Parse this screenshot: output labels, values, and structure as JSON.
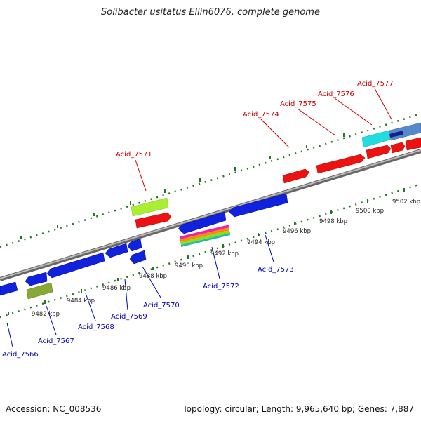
{
  "title": "Solibacter usitatus Ellin6076, complete genome",
  "footer": {
    "accession": "Accession: NC_008536",
    "summary": "Topology: circular; Length: 9,965,640 bp; Genes: 7,887"
  },
  "colors": {
    "forward_gene": "#ee1111",
    "reverse_gene": "#1122dd",
    "forward_label": "#cc0000",
    "reverse_label": "#0000bb",
    "tick": "#227722",
    "backbone": "#888888"
  },
  "scale_ticks": [
    {
      "label": "9482 kbp"
    },
    {
      "label": "9484 kbp"
    },
    {
      "label": "9486 kbp"
    },
    {
      "label": "9488 kbp"
    },
    {
      "label": "9490 kbp"
    },
    {
      "label": "9492 kbp"
    },
    {
      "label": "9494 kbp"
    },
    {
      "label": "9496 kbp"
    },
    {
      "label": "9498 kbp"
    },
    {
      "label": "9500 kbp"
    },
    {
      "label": "9502 kbp"
    }
  ],
  "forward_labels": [
    {
      "name": "Acid_7571"
    },
    {
      "name": "Acid_7574"
    },
    {
      "name": "Acid_7575"
    },
    {
      "name": "Acid_7576"
    },
    {
      "name": "Acid_7577"
    }
  ],
  "reverse_labels": [
    {
      "name": "Acid_7566"
    },
    {
      "name": "Acid_7567"
    },
    {
      "name": "Acid_7568"
    },
    {
      "name": "Acid_7569"
    },
    {
      "name": "Acid_7570"
    },
    {
      "name": "Acid_7572"
    },
    {
      "name": "Acid_7573"
    }
  ]
}
